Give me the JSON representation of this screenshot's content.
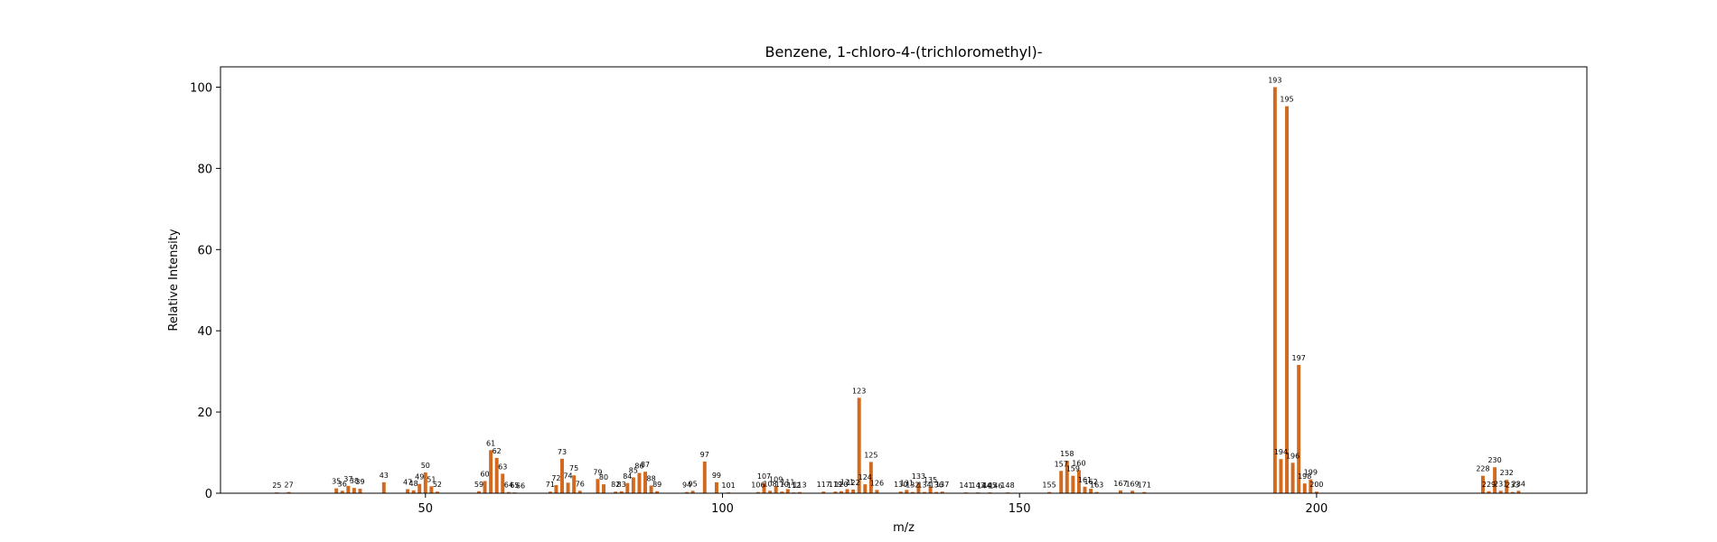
{
  "chart_data": {
    "type": "bar",
    "title": "Benzene, 1-chloro-4-(trichloromethyl)-",
    "xlabel": "m/z",
    "ylabel": "Relative Intensity",
    "xlim": [
      15.5,
      245.5
    ],
    "ylim": [
      0,
      105
    ],
    "xticks": [
      50,
      100,
      150,
      200
    ],
    "yticks": [
      0,
      20,
      40,
      60,
      80,
      100
    ],
    "grid": false,
    "bar_color": "#d2691e",
    "points": [
      [
        25,
        0.2
      ],
      [
        27,
        0.3
      ],
      [
        35,
        1.2
      ],
      [
        36,
        0.6
      ],
      [
        37,
        1.8
      ],
      [
        38,
        1.3
      ],
      [
        39,
        1.1
      ],
      [
        43,
        2.7
      ],
      [
        47,
        1.0
      ],
      [
        48,
        0.7
      ],
      [
        49,
        2.3
      ],
      [
        50,
        5.1
      ],
      [
        51,
        1.7
      ],
      [
        52,
        0.4
      ],
      [
        59,
        0.5
      ],
      [
        60,
        3.0
      ],
      [
        61,
        10.6
      ],
      [
        62,
        8.7
      ],
      [
        63,
        4.8
      ],
      [
        64,
        0.3
      ],
      [
        65,
        0.2
      ],
      [
        66,
        0.1
      ],
      [
        71,
        0.4
      ],
      [
        72,
        2.0
      ],
      [
        73,
        8.5
      ],
      [
        74,
        2.6
      ],
      [
        75,
        4.4
      ],
      [
        76,
        0.6
      ],
      [
        79,
        3.5
      ],
      [
        80,
        2.2
      ],
      [
        82,
        0.4
      ],
      [
        83,
        0.5
      ],
      [
        84,
        2.5
      ],
      [
        85,
        3.9
      ],
      [
        86,
        5.0
      ],
      [
        87,
        5.3
      ],
      [
        88,
        1.9
      ],
      [
        89,
        0.5
      ],
      [
        94,
        0.3
      ],
      [
        95,
        0.6
      ],
      [
        97,
        7.8
      ],
      [
        99,
        2.7
      ],
      [
        101,
        0.2
      ],
      [
        106,
        0.3
      ],
      [
        107,
        2.5
      ],
      [
        108,
        0.6
      ],
      [
        109,
        1.7
      ],
      [
        110,
        0.4
      ],
      [
        111,
        1.0
      ],
      [
        112,
        0.2
      ],
      [
        113,
        0.3
      ],
      [
        117,
        0.4
      ],
      [
        119,
        0.4
      ],
      [
        120,
        0.5
      ],
      [
        121,
        1.0
      ],
      [
        122,
        0.9
      ],
      [
        123,
        23.5
      ],
      [
        124,
        2.2
      ],
      [
        125,
        7.7
      ],
      [
        126,
        0.8
      ],
      [
        130,
        0.4
      ],
      [
        131,
        0.8
      ],
      [
        132,
        0.3
      ],
      [
        133,
        2.5
      ],
      [
        134,
        0.3
      ],
      [
        135,
        1.6
      ],
      [
        136,
        0.3
      ],
      [
        137,
        0.4
      ],
      [
        141,
        0.2
      ],
      [
        143,
        0.2
      ],
      [
        144,
        0.1
      ],
      [
        145,
        0.2
      ],
      [
        146,
        0.1
      ],
      [
        148,
        0.2
      ],
      [
        155,
        0.3
      ],
      [
        157,
        5.5
      ],
      [
        158,
        8.0
      ],
      [
        159,
        4.3
      ],
      [
        160,
        5.7
      ],
      [
        161,
        1.6
      ],
      [
        162,
        1.1
      ],
      [
        163,
        0.3
      ],
      [
        167,
        0.7
      ],
      [
        169,
        0.6
      ],
      [
        171,
        0.3
      ],
      [
        193,
        100.0
      ],
      [
        194,
        8.4
      ],
      [
        195,
        95.3
      ],
      [
        196,
        7.5
      ],
      [
        197,
        31.6
      ],
      [
        198,
        2.4
      ],
      [
        199,
        3.4
      ],
      [
        200,
        0.4
      ],
      [
        228,
        4.3
      ],
      [
        229,
        0.5
      ],
      [
        230,
        6.4
      ],
      [
        231,
        0.6
      ],
      [
        232,
        3.3
      ],
      [
        233,
        0.3
      ],
      [
        234,
        0.6
      ]
    ]
  }
}
